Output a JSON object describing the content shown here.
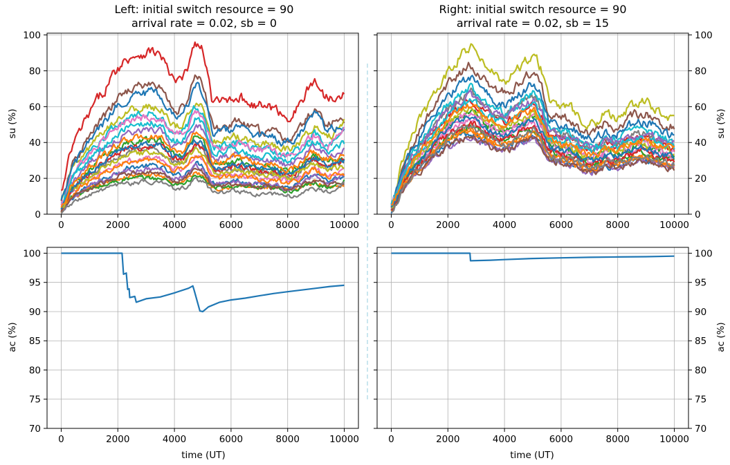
{
  "colors": {
    "series_cycle": [
      "#1f77b4",
      "#ff7f0e",
      "#2ca02c",
      "#d62728",
      "#9467bd",
      "#8c564b",
      "#e377c2",
      "#7f7f7f",
      "#bcbd22",
      "#17becf"
    ],
    "ac_line": "#1f77b4",
    "grid": "#b0b0b0",
    "axes": "#000000",
    "divider": "#add8e6"
  },
  "chart_data": [
    {
      "panel": "left-top",
      "type": "line",
      "title": "Left: initial switch resource = 90",
      "subtitle": "arrival rate = 0.02, sb = 0",
      "xlabel": "",
      "ylabel": "su (%)",
      "xlim": [
        -500,
        10500
      ],
      "ylim": [
        0,
        101
      ],
      "xticks": [
        0,
        2000,
        4000,
        6000,
        8000,
        10000
      ],
      "yticks": [
        0,
        20,
        40,
        60,
        80,
        100
      ],
      "grid": true,
      "ytick_side": "left",
      "series_count": 22,
      "series_shape": [
        [
          0,
          0
        ],
        [
          300,
          0.28
        ],
        [
          700,
          0.42
        ],
        [
          1100,
          0.55
        ],
        [
          1500,
          0.66
        ],
        [
          1900,
          0.78
        ],
        [
          2300,
          0.86
        ],
        [
          2700,
          0.88
        ],
        [
          3100,
          0.9
        ],
        [
          3500,
          0.87
        ],
        [
          3900,
          0.7
        ],
        [
          4300,
          0.72
        ],
        [
          4700,
          0.97
        ],
        [
          5000,
          0.88
        ],
        [
          5300,
          0.55
        ],
        [
          5700,
          0.58
        ],
        [
          6100,
          0.62
        ],
        [
          6500,
          0.58
        ],
        [
          6900,
          0.55
        ],
        [
          7300,
          0.55
        ],
        [
          7700,
          0.5
        ],
        [
          8100,
          0.48
        ],
        [
          8500,
          0.6
        ],
        [
          8900,
          0.72
        ],
        [
          9300,
          0.6
        ],
        [
          9700,
          0.62
        ],
        [
          10000,
          0.6
        ]
      ],
      "series_levels": [
        30,
        24,
        22,
        100,
        28,
        80,
        34,
        40,
        66,
        62,
        75,
        34,
        46,
        42,
        52,
        26,
        60,
        20,
        38,
        56,
        44,
        48
      ],
      "series_y_start": [
        1,
        3,
        5,
        12,
        2,
        6,
        4,
        3,
        8,
        5,
        6,
        2,
        4,
        3,
        5,
        2,
        6,
        1,
        4,
        5,
        3,
        4
      ],
      "series_y_end": [
        22,
        18,
        24,
        72,
        28,
        52,
        26,
        34,
        64,
        58,
        46,
        22,
        32,
        36,
        40,
        20,
        60,
        24,
        26,
        44,
        35,
        38
      ]
    },
    {
      "panel": "right-top",
      "type": "line",
      "title": "Right: initial switch resource = 90",
      "subtitle": "arrival rate = 0.02, sb = 15",
      "xlabel": "",
      "ylabel": "su (%)",
      "xlim": [
        -500,
        10500
      ],
      "ylim": [
        0,
        101
      ],
      "xticks": [
        0,
        2000,
        4000,
        6000,
        8000,
        10000
      ],
      "yticks": [
        0,
        20,
        40,
        60,
        80,
        100
      ],
      "grid": true,
      "ytick_side": "right",
      "series_count": 22,
      "series_shape": [
        [
          0,
          0
        ],
        [
          400,
          0.3
        ],
        [
          800,
          0.45
        ],
        [
          1200,
          0.58
        ],
        [
          1600,
          0.72
        ],
        [
          2000,
          0.82
        ],
        [
          2400,
          0.9
        ],
        [
          2800,
          0.95
        ],
        [
          3200,
          0.85
        ],
        [
          3600,
          0.78
        ],
        [
          4000,
          0.75
        ],
        [
          4400,
          0.82
        ],
        [
          4800,
          0.88
        ],
        [
          5000,
          0.92
        ],
        [
          5300,
          0.78
        ],
        [
          5500,
          0.62
        ],
        [
          5900,
          0.6
        ],
        [
          6300,
          0.58
        ],
        [
          6700,
          0.5
        ],
        [
          7100,
          0.48
        ],
        [
          7500,
          0.55
        ],
        [
          7900,
          0.52
        ],
        [
          8300,
          0.58
        ],
        [
          8700,
          0.62
        ],
        [
          9100,
          0.6
        ],
        [
          9500,
          0.55
        ],
        [
          10000,
          0.55
        ]
      ],
      "series_levels": [
        48,
        50,
        52,
        66,
        46,
        88,
        56,
        72,
        98,
        74,
        80,
        50,
        60,
        54,
        70,
        46,
        60,
        52,
        62,
        66,
        58,
        64
      ],
      "series_y_start": [
        2,
        4,
        6,
        8,
        3,
        5,
        4,
        3,
        6,
        5,
        6,
        2,
        4,
        3,
        5,
        2,
        6,
        1,
        4,
        5,
        3,
        4
      ],
      "series_y_end": [
        28,
        26,
        30,
        30,
        26,
        48,
        30,
        34,
        50,
        36,
        40,
        28,
        32,
        30,
        38,
        26,
        34,
        28,
        32,
        36,
        30,
        34
      ]
    },
    {
      "panel": "left-bottom",
      "type": "line",
      "title": "",
      "xlabel": "time (UT)",
      "ylabel": "ac (%)",
      "xlim": [
        -500,
        10500
      ],
      "ylim": [
        70,
        101
      ],
      "xticks": [
        0,
        2000,
        4000,
        6000,
        8000,
        10000
      ],
      "yticks": [
        70,
        75,
        80,
        85,
        90,
        95,
        100
      ],
      "grid": true,
      "ytick_side": "left",
      "series": [
        {
          "points": [
            [
              0,
              100
            ],
            [
              2150,
              100
            ],
            [
              2200,
              96.4
            ],
            [
              2300,
              96.6
            ],
            [
              2350,
              93.8
            ],
            [
              2400,
              93.9
            ],
            [
              2420,
              92.4
            ],
            [
              2600,
              92.6
            ],
            [
              2650,
              91.6
            ],
            [
              3000,
              92.2
            ],
            [
              3500,
              92.5
            ],
            [
              4000,
              93.2
            ],
            [
              4500,
              94.0
            ],
            [
              4650,
              94.4
            ],
            [
              4700,
              93.6
            ],
            [
              4900,
              90.1
            ],
            [
              5000,
              90.0
            ],
            [
              5200,
              90.8
            ],
            [
              5600,
              91.6
            ],
            [
              6000,
              92.0
            ],
            [
              6500,
              92.3
            ],
            [
              7000,
              92.7
            ],
            [
              7500,
              93.1
            ],
            [
              8000,
              93.4
            ],
            [
              8500,
              93.7
            ],
            [
              9000,
              94.0
            ],
            [
              9500,
              94.3
            ],
            [
              10000,
              94.5
            ]
          ]
        }
      ]
    },
    {
      "panel": "right-bottom",
      "type": "line",
      "title": "",
      "xlabel": "time (UT)",
      "ylabel": "ac (%)",
      "xlim": [
        -500,
        10500
      ],
      "ylim": [
        70,
        101
      ],
      "xticks": [
        0,
        2000,
        4000,
        6000,
        8000,
        10000
      ],
      "yticks": [
        70,
        75,
        80,
        85,
        90,
        95,
        100
      ],
      "grid": true,
      "ytick_side": "right",
      "series": [
        {
          "points": [
            [
              0,
              100
            ],
            [
              2780,
              100
            ],
            [
              2800,
              98.7
            ],
            [
              3500,
              98.8
            ],
            [
              4000,
              98.9
            ],
            [
              5000,
              99.1
            ],
            [
              6000,
              99.2
            ],
            [
              7000,
              99.3
            ],
            [
              8000,
              99.35
            ],
            [
              9000,
              99.4
            ],
            [
              10000,
              99.5
            ]
          ]
        }
      ]
    }
  ]
}
